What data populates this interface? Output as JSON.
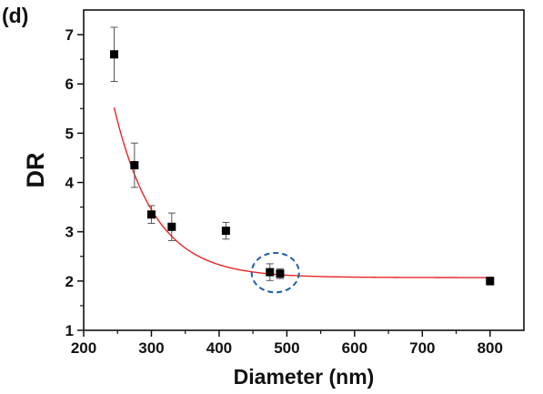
{
  "chart_data": {
    "type": "scatter",
    "panel_label": "(d)",
    "xlabel": "Diameter (nm)",
    "ylabel": "DR",
    "xlim": [
      200,
      850
    ],
    "ylim": [
      1,
      7.5
    ],
    "x_ticks": [
      200,
      300,
      400,
      500,
      600,
      700,
      800
    ],
    "y_ticks": [
      1,
      2,
      3,
      4,
      5,
      6,
      7
    ],
    "grid": false,
    "series": [
      {
        "marker": "square",
        "color": "#000000",
        "points": [
          {
            "x": 245,
            "y": 6.6,
            "err": 0.55
          },
          {
            "x": 275,
            "y": 4.35,
            "err": 0.45
          },
          {
            "x": 300,
            "y": 3.35,
            "err": 0.18
          },
          {
            "x": 330,
            "y": 3.1,
            "err": 0.28
          },
          {
            "x": 410,
            "y": 3.02,
            "err": 0.17
          },
          {
            "x": 475,
            "y": 2.18,
            "err": 0.17
          },
          {
            "x": 490,
            "y": 2.15,
            "err": 0.1
          },
          {
            "x": 800,
            "y": 2.0,
            "err": 0.08
          }
        ]
      }
    ],
    "fit_curve": {
      "color": "#e8262a",
      "x_start": 245,
      "x_end": 800,
      "model": "exponential_decay",
      "y0": 2.07,
      "amplitude": 3.45,
      "x0": 245,
      "tau": 60
    },
    "highlight_circle": {
      "color": "#1f5fa8",
      "style": "dashed",
      "center": {
        "x": 483,
        "y": 2.17
      },
      "radius_x": 35,
      "radius_y": 0.4
    }
  }
}
